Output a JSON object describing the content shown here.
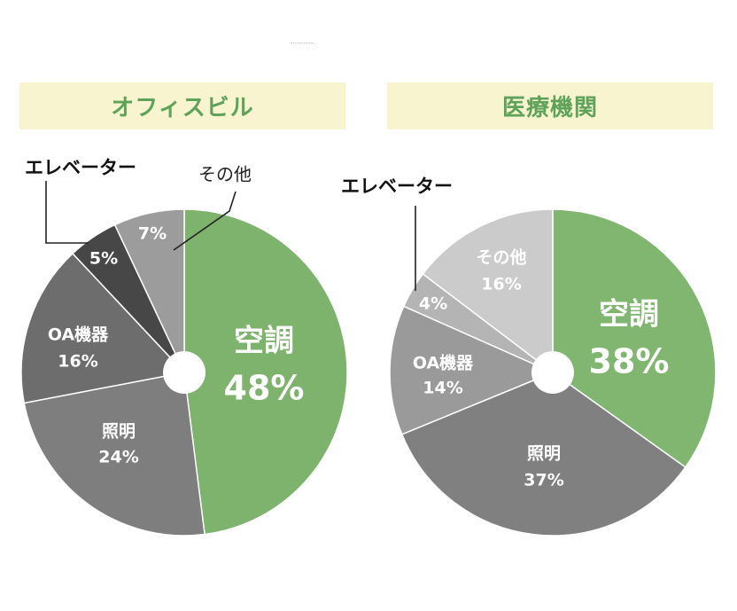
{
  "chart_data": [
    {
      "type": "pie",
      "title": "オフィスビル",
      "slices": [
        {
          "key": "aircon",
          "label": "空調",
          "value": 48,
          "value_label": "48%",
          "color": "#7db36c"
        },
        {
          "key": "lighting",
          "label": "照明",
          "value": 24,
          "value_label": "24%",
          "color": "#7e7e7e"
        },
        {
          "key": "oa",
          "label": "OA機器",
          "value": 16,
          "value_label": "16%",
          "color": "#6d6d6d"
        },
        {
          "key": "elevator",
          "label": "エレベーター",
          "value": 5,
          "value_label": "5%",
          "color": "#474747"
        },
        {
          "key": "other",
          "label": "その他",
          "value": 7,
          "value_label": "7%",
          "color": "#9c9c9c"
        }
      ]
    },
    {
      "type": "pie",
      "title": "医療機関",
      "slices": [
        {
          "key": "aircon",
          "label": "空調",
          "value": 38,
          "value_label": "38%",
          "color": "#80b66f"
        },
        {
          "key": "lighting",
          "label": "照明",
          "value": 37,
          "value_label": "37%",
          "color": "#808080"
        },
        {
          "key": "oa",
          "label": "OA機器",
          "value": 14,
          "value_label": "14%",
          "color": "#9a9a9a"
        },
        {
          "key": "elevator",
          "label": "エレベーター",
          "value": 4,
          "value_label": "4%",
          "color": "#b4b4b4"
        },
        {
          "key": "other",
          "label": "その他",
          "value": 16,
          "value_label": "16%",
          "color": "#cbcbcb"
        }
      ]
    }
  ]
}
